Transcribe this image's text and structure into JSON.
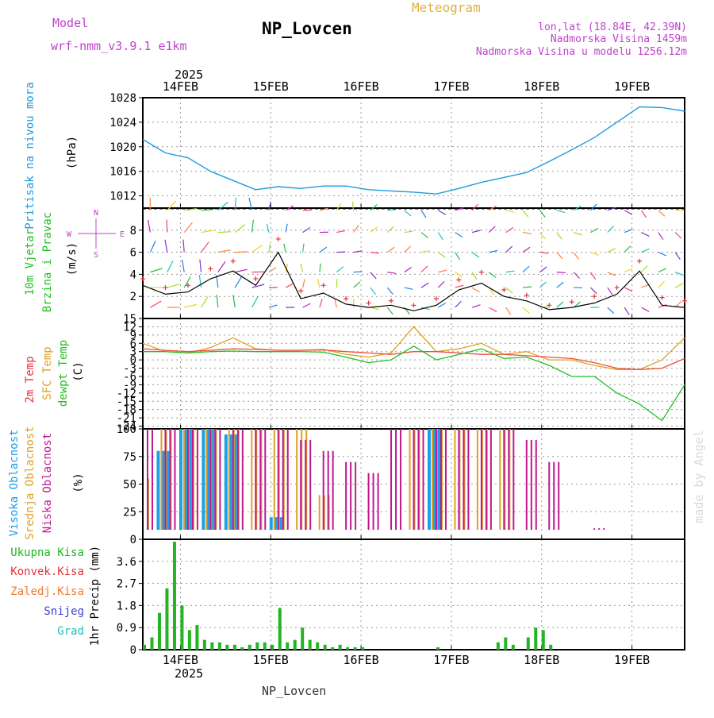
{
  "header": {
    "model_label": "Model",
    "model_name": "wrf-nmm_v3.9.1 e1km",
    "title": "NP_Lovcen",
    "meteogram_label": "Meteogram",
    "lonlat": "lon,lat (18.84E, 42.39N)",
    "elevation": "Nadmorska Visina 1459m",
    "model_elevation": "Nadmorska Visina u modelu 1256.12m"
  },
  "footer": {
    "station": "NP_Lovcen",
    "watermark": "made by Angel"
  },
  "colors": {
    "pressure": "#1e9be0",
    "wind_speed": "#000000",
    "gust": "#e8323c",
    "temp": "#e8503c",
    "sfc_temp": "#e0a020",
    "dewpt": "#20c020",
    "high_cloud": "#1aa0e8",
    "mid_cloud": "#e0a020",
    "low_cloud": "#c01890",
    "precip_total": "#22b422",
    "precip_conv": "#e8323c",
    "precip_frz": "#ef7a30",
    "snow": "#4040d8",
    "graupel": "#20c0c0",
    "label_purple": "#c040d0"
  },
  "time_axis": {
    "year_label": "2025",
    "days": [
      "14FEB",
      "15FEB",
      "16FEB",
      "17FEB",
      "18FEB",
      "19FEB"
    ]
  },
  "chart_data": [
    {
      "type": "line",
      "panel": "pressure",
      "ylabel_lines": [
        "Pritisak na nivou mora"
      ],
      "unit": "(hPa)",
      "ylim": [
        1010,
        1028
      ],
      "yticks": [
        "1012",
        "1016",
        "1020",
        "1024",
        "1028"
      ],
      "x_hours": [
        0,
        6,
        12,
        18,
        24,
        30,
        36,
        42,
        48,
        54,
        60,
        66,
        72,
        78,
        84,
        90,
        96,
        102,
        108,
        114,
        120,
        126,
        132,
        138,
        144
      ],
      "series": [
        {
          "values": [
            1021.2,
            1019.0,
            1018.2,
            1016.0,
            1014.5,
            1013.0,
            1013.5,
            1013.2,
            1013.6,
            1013.6,
            1013.0,
            1012.8,
            1012.6,
            1012.3,
            1013.2,
            1014.2,
            1015.0,
            1015.8,
            1017.6,
            1019.5,
            1021.5,
            1024.0,
            1026.5,
            1026.4,
            1025.8
          ]
        }
      ],
      "grid": true
    },
    {
      "type": "line",
      "panel": "wind",
      "ylabel_lines": [
        "10m Vjetar",
        "Brzina i Pravac"
      ],
      "unit": "(m/s)",
      "compass": {
        "n": "N",
        "s": "S",
        "w": "W",
        "e": "E"
      },
      "ylim": [
        0,
        10
      ],
      "yticks": [
        "2",
        "4",
        "6",
        "8"
      ],
      "x_hours": [
        0,
        6,
        12,
        18,
        24,
        30,
        36,
        42,
        48,
        54,
        60,
        66,
        72,
        78,
        84,
        90,
        96,
        102,
        108,
        114,
        120,
        126,
        132,
        138,
        144
      ],
      "series": [
        {
          "values": [
            3.0,
            2.2,
            2.4,
            3.6,
            4.3,
            3.0,
            6.0,
            1.8,
            2.3,
            1.3,
            1.0,
            1.2,
            0.7,
            1.2,
            2.6,
            3.2,
            2.0,
            1.6,
            0.8,
            1.0,
            1.4,
            2.2,
            4.3,
            1.2,
            1.0
          ]
        },
        {
          "values": [
            3.6,
            2.8,
            3.0,
            4.5,
            5.2,
            3.6,
            7.2,
            2.5,
            3.0,
            1.8,
            1.4,
            1.6,
            1.2,
            1.8,
            3.5,
            4.2,
            2.6,
            2.1,
            1.2,
            1.5,
            2.0,
            2.8,
            5.2,
            1.9,
            1.6
          ]
        }
      ],
      "grid": true
    },
    {
      "type": "line",
      "panel": "temperature",
      "ylabel_lines": [
        "2m Temp",
        "SFC Temp",
        "dewpt Temp"
      ],
      "unit": "(C)",
      "ylim": [
        -25,
        15
      ],
      "yticks": [
        "15",
        "12",
        "9",
        "6",
        "3",
        "0",
        "-3",
        "-6",
        "-9",
        "-12",
        "-15",
        "-18",
        "-21",
        "-24"
      ],
      "x_hours": [
        0,
        6,
        12,
        18,
        24,
        30,
        36,
        42,
        48,
        54,
        60,
        66,
        72,
        78,
        84,
        90,
        96,
        102,
        108,
        114,
        120,
        126,
        132,
        138,
        144
      ],
      "series": [
        {
          "name": "2m Temp",
          "values": [
            4.0,
            3.5,
            3.0,
            3.5,
            4.0,
            3.8,
            3.5,
            3.5,
            3.6,
            3.0,
            2.5,
            2.0,
            3.0,
            3.0,
            2.5,
            2.0,
            2.0,
            1.5,
            1.0,
            0.5,
            -1.0,
            -3.0,
            -3.5,
            -3.0,
            0.5
          ]
        },
        {
          "name": "SFC Temp",
          "values": [
            6.0,
            3.0,
            2.5,
            4.5,
            8.0,
            4.0,
            3.5,
            3.5,
            3.8,
            2.0,
            1.0,
            2.5,
            12.0,
            3.0,
            4.0,
            6.0,
            2.0,
            3.0,
            0.0,
            0.0,
            -2.0,
            -3.5,
            -3.5,
            0.0,
            8.0
          ]
        },
        {
          "name": "dewpt Temp",
          "values": [
            3.0,
            3.0,
            2.5,
            3.0,
            3.2,
            3.0,
            3.0,
            3.0,
            2.8,
            1.0,
            -1.0,
            0.0,
            5.0,
            0.0,
            2.0,
            4.0,
            0.5,
            1.0,
            -2.0,
            -6.0,
            -6.0,
            -12.0,
            -16.0,
            -22.0,
            -9.0
          ]
        }
      ],
      "grid": true
    },
    {
      "type": "bar",
      "panel": "clouds",
      "ylabel_lines": [
        "Visoka Oblacnost",
        "Srednja Oblacnost",
        "Niska Oblacnost"
      ],
      "unit": "(%)",
      "ylim": [
        0,
        100
      ],
      "yticks": [
        "0",
        "25",
        "50",
        "75",
        "100"
      ],
      "x_hours": [
        0,
        6,
        12,
        18,
        24,
        30,
        36,
        42,
        48,
        54,
        60,
        66,
        72,
        78,
        84,
        90,
        96,
        102,
        108,
        114,
        120,
        126,
        132,
        138,
        144
      ],
      "series": [
        {
          "name": "Visoka Oblacnost",
          "values": [
            0,
            80,
            100,
            100,
            95,
            0,
            20,
            0,
            0,
            0,
            0,
            0,
            0,
            100,
            0,
            0,
            0,
            0,
            0,
            0,
            0,
            0,
            0,
            0,
            0
          ]
        },
        {
          "name": "Srednja Oblacnost",
          "values": [
            55,
            100,
            100,
            100,
            100,
            100,
            100,
            100,
            40,
            0,
            0,
            0,
            100,
            100,
            100,
            100,
            100,
            0,
            0,
            0,
            0,
            0,
            0,
            0,
            0
          ]
        },
        {
          "name": "Niska Oblacnost",
          "values": [
            100,
            100,
            100,
            100,
            100,
            100,
            100,
            90,
            80,
            70,
            60,
            100,
            100,
            100,
            100,
            100,
            100,
            90,
            70,
            8,
            10,
            5,
            0,
            0,
            0
          ]
        }
      ],
      "grid": true
    },
    {
      "type": "bar",
      "panel": "precipitation",
      "legend": [
        "Ukupna Kisa",
        "Konvek.Kisa",
        "Zaledj.Kisa",
        "Snijeg",
        "Grad"
      ],
      "ylabel_lines": [
        "1hr Precip (mm)"
      ],
      "ylim": [
        0,
        4.5
      ],
      "yticks": [
        "0",
        "0.9",
        "1.8",
        "2.7",
        "3.6"
      ],
      "x_hours": [
        0,
        2,
        4,
        6,
        8,
        10,
        12,
        14,
        16,
        18,
        20,
        22,
        24,
        26,
        28,
        30,
        32,
        34,
        36,
        38,
        40,
        42,
        44,
        46,
        48,
        50,
        52,
        54,
        56,
        58,
        60,
        62,
        64,
        66,
        68,
        70,
        72,
        74,
        76,
        78,
        80,
        82,
        84,
        86,
        88,
        90,
        92,
        94,
        96,
        98,
        100,
        102,
        104,
        106,
        108,
        110,
        112,
        114,
        116,
        118,
        120,
        122,
        124,
        126,
        128,
        130,
        132,
        134,
        136,
        138,
        140,
        142,
        144
      ],
      "series": [
        {
          "name": "Ukupna Kisa",
          "values": [
            0.2,
            0.5,
            1.5,
            2.5,
            4.4,
            1.8,
            0.8,
            1.0,
            0.4,
            0.3,
            0.3,
            0.2,
            0.2,
            0.1,
            0.2,
            0.3,
            0.3,
            0.2,
            1.7,
            0.3,
            0.4,
            0.9,
            0.4,
            0.3,
            0.2,
            0.1,
            0.2,
            0.1,
            0.1,
            0.1,
            0,
            0,
            0,
            0,
            0,
            0,
            0,
            0,
            0,
            0.1,
            0,
            0,
            0,
            0,
            0,
            0,
            0,
            0.3,
            0.5,
            0.2,
            0,
            0.5,
            0.9,
            0.8,
            0.2,
            0,
            0,
            0,
            0,
            0,
            0,
            0,
            0,
            0,
            0,
            0,
            0,
            0,
            0,
            0,
            0,
            0,
            0
          ]
        }
      ],
      "grid": true
    }
  ]
}
